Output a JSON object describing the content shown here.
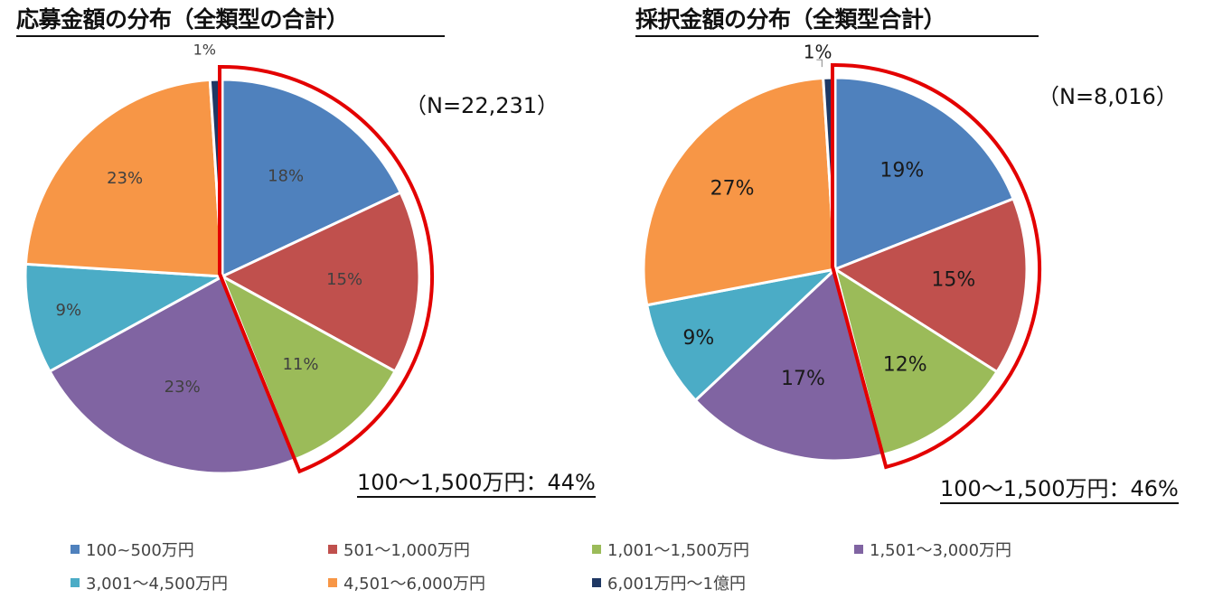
{
  "colors": {
    "slices": [
      "#4f81bd",
      "#c0504d",
      "#9bbb59",
      "#8064a2",
      "#4bacc6",
      "#f79646",
      "#1f3864"
    ],
    "highlight": "#e30000"
  },
  "legend": [
    "100~500万円",
    "501〜1,000万円",
    "1,001〜1,500万円",
    "1,501〜3,000万円",
    "3,001〜4,500万円",
    "4,501〜6,000万円",
    "6,001万円〜1億円"
  ],
  "chart_data": [
    {
      "type": "pie",
      "title": "応募金額の分布（全類型の合計）",
      "n_label": "（N=22,231）",
      "categories": [
        "100~500万円",
        "501〜1,000万円",
        "1,001〜1,500万円",
        "1,501〜3,000万円",
        "3,001〜4,500万円",
        "4,501〜6,000万円",
        "6,001万円〜1億円"
      ],
      "values": [
        18,
        15,
        11,
        23,
        9,
        23,
        1
      ],
      "labels": [
        "18%",
        "15%",
        "11%",
        "23%",
        "9%",
        "23%",
        "1%"
      ],
      "highlight_range": [
        0,
        2
      ],
      "highlight_label": "100〜1,500万円：44%"
    },
    {
      "type": "pie",
      "title": "採択金額の分布（全類型合計）",
      "n_label": "（N=8,016）",
      "categories": [
        "100~500万円",
        "501〜1,000万円",
        "1,001〜1,500万円",
        "1,501〜3,000万円",
        "3,001〜4,500万円",
        "4,501〜6,000万円",
        "6,001万円〜1億円"
      ],
      "values": [
        19,
        15,
        12,
        17,
        9,
        27,
        1
      ],
      "labels": [
        "19%",
        "15%",
        "12%",
        "17%",
        "9%",
        "27%",
        "1%"
      ],
      "highlight_range": [
        0,
        2
      ],
      "highlight_label": "100〜1,500万円：46%"
    }
  ]
}
